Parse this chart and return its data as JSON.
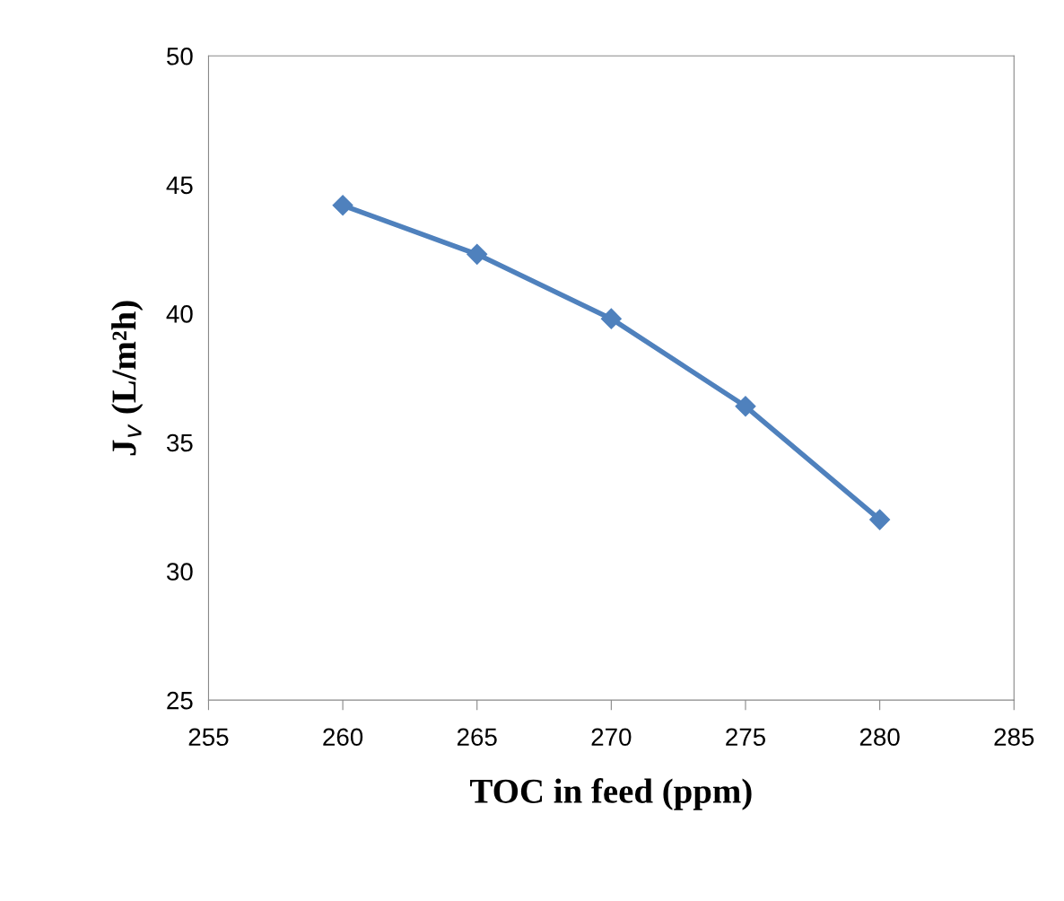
{
  "chart_data": {
    "type": "line",
    "xlabel": "TOC in feed (ppm)",
    "ylabel": "J$_{v}$ (L/m²h)",
    "x": [
      260,
      265,
      270,
      275,
      280
    ],
    "series": [
      {
        "color": "#4f81bd",
        "values": [
          44.2,
          42.3,
          39.8,
          36.4,
          32.0
        ]
      }
    ],
    "xlim": [
      255,
      285
    ],
    "xticks": [
      255,
      260,
      265,
      270,
      275,
      280,
      285
    ],
    "ylim": [
      25,
      50
    ],
    "yticks": [
      25,
      30,
      35,
      40,
      45,
      50
    ],
    "marker": "diamond",
    "line_style": "solid",
    "grid": false,
    "legend": false
  }
}
